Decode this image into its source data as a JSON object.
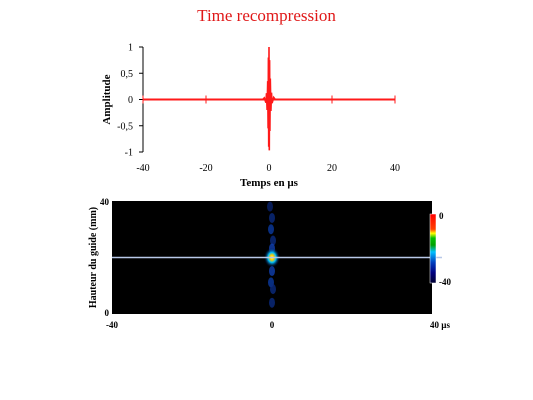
{
  "title": "Time recompression",
  "chart_data": [
    {
      "type": "line",
      "xlabel": "Temps en µs",
      "ylabel": "Amplitude",
      "xlim": [
        -40,
        40
      ],
      "ylim": [
        -1,
        1
      ],
      "xticks": [
        "-40",
        "-20",
        "0",
        "20",
        "40"
      ],
      "yticks": [
        "1",
        "0,5",
        "0",
        "-0,5",
        "-1"
      ],
      "color": "#ff1a1a",
      "series": [
        {
          "x": [
            -40,
            -2,
            -1.5,
            -1,
            -0.8,
            -0.6,
            -0.4,
            -0.3,
            -0.2,
            -0.1,
            0,
            0.1,
            0.2,
            0.3,
            0.4,
            0.6,
            0.8,
            1,
            1.5,
            2,
            40
          ],
          "values": [
            0,
            0,
            0.03,
            -0.06,
            0.12,
            -0.2,
            0.35,
            -0.55,
            0.8,
            -0.9,
            1,
            -0.97,
            0.75,
            -0.6,
            0.4,
            -0.22,
            0.13,
            -0.07,
            0.04,
            0,
            0
          ]
        }
      ]
    },
    {
      "type": "heatmap",
      "ylabel": "Hauteur du guide (mm)",
      "xlim": [
        -40,
        40
      ],
      "ylim": [
        0,
        40
      ],
      "xticks": [
        "-40",
        "0",
        "40 µs"
      ],
      "yticks": [
        "40",
        "0"
      ],
      "colorbar": {
        "labels": [
          "0",
          "-40"
        ],
        "colors": [
          "#ff0000",
          "#ffff00",
          "#00c000",
          "#00c0ff",
          "#0000a0",
          "#000040"
        ]
      },
      "background": "#000000",
      "highlight_line_y": 20,
      "focus": {
        "x": 0,
        "y": 20
      }
    }
  ]
}
